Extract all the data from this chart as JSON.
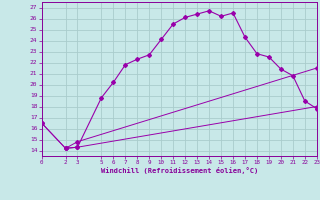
{
  "xlabel": "Windchill (Refroidissement éolien,°C)",
  "background_color": "#c8e8e8",
  "line_color": "#9900aa",
  "grid_color": "#aacccc",
  "xlim": [
    0,
    23
  ],
  "ylim": [
    13.5,
    27.5
  ],
  "xticks": [
    0,
    2,
    3,
    5,
    6,
    7,
    8,
    9,
    10,
    11,
    12,
    13,
    14,
    15,
    16,
    17,
    18,
    19,
    20,
    21,
    22,
    23
  ],
  "yticks": [
    14,
    15,
    16,
    17,
    18,
    19,
    20,
    21,
    22,
    23,
    24,
    25,
    26,
    27
  ],
  "line1_x": [
    2,
    3,
    5,
    6,
    7,
    8,
    9,
    10,
    11,
    12,
    13,
    14,
    15,
    16,
    17,
    18,
    19,
    20,
    21,
    22,
    23
  ],
  "line1_y": [
    14.2,
    14.3,
    18.8,
    20.2,
    21.8,
    22.3,
    22.7,
    24.1,
    25.5,
    26.1,
    26.4,
    26.7,
    26.2,
    26.5,
    24.3,
    22.8,
    22.5,
    21.4,
    20.8,
    18.5,
    17.8
  ],
  "line2_x": [
    0,
    2,
    3,
    23
  ],
  "line2_y": [
    16.5,
    14.2,
    14.3,
    18.0
  ],
  "line3_x": [
    0,
    2,
    3,
    23
  ],
  "line3_y": [
    16.5,
    14.2,
    14.8,
    21.5
  ]
}
